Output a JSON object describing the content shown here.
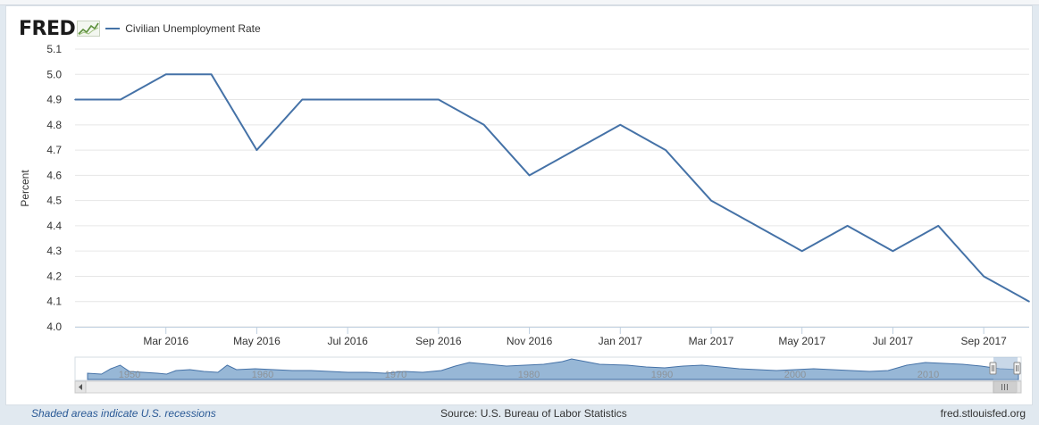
{
  "header": {
    "logo_text": "FRED",
    "legend_label": "Civilian Unemployment Rate",
    "series_color": "#4572a7"
  },
  "chart_data": {
    "type": "line",
    "ylabel": "Percent",
    "ylim": [
      4.0,
      5.1
    ],
    "yticks": [
      "4.0",
      "4.1",
      "4.2",
      "4.3",
      "4.4",
      "4.5",
      "4.6",
      "4.7",
      "4.8",
      "4.9",
      "5.0",
      "5.1"
    ],
    "grid": true,
    "xtick_labels": [
      "Mar 2016",
      "May 2016",
      "Jul 2016",
      "Sep 2016",
      "Nov 2016",
      "Jan 2017",
      "Mar 2017",
      "May 2017",
      "Jul 2017",
      "Sep 2017"
    ],
    "x": [
      "2016-01",
      "2016-02",
      "2016-03",
      "2016-04",
      "2016-05",
      "2016-06",
      "2016-07",
      "2016-08",
      "2016-09",
      "2016-10",
      "2016-11",
      "2016-12",
      "2017-01",
      "2017-02",
      "2017-03",
      "2017-04",
      "2017-05",
      "2017-06",
      "2017-07",
      "2017-08",
      "2017-09",
      "2017-10"
    ],
    "series": [
      {
        "values": [
          4.9,
          4.9,
          5.0,
          5.0,
          4.7,
          4.9,
          4.9,
          4.9,
          4.9,
          4.8,
          4.6,
          4.7,
          4.8,
          4.7,
          4.5,
          4.4,
          4.3,
          4.4,
          4.3,
          4.4,
          4.2,
          4.1
        ]
      }
    ],
    "navigator_labels": [
      "1950",
      "1960",
      "1970",
      "1980",
      "1990",
      "2000",
      "2010"
    ]
  },
  "footer": {
    "recessions_note": "Shaded areas indicate U.S. recessions",
    "source": "Source: U.S. Bureau of Labor Statistics",
    "site": "fred.stlouisfed.org"
  }
}
